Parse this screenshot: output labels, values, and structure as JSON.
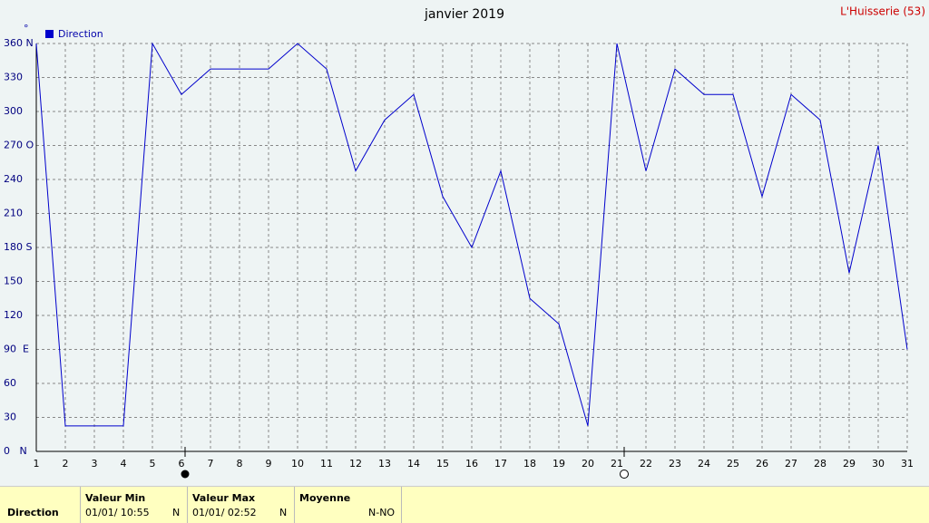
{
  "chart_data": {
    "type": "line",
    "title": "janvier 2019",
    "location": "L'Huisserie (53)",
    "y_unit": "°",
    "x": [
      1,
      2,
      3,
      4,
      5,
      6,
      7,
      8,
      9,
      10,
      11,
      12,
      13,
      14,
      15,
      16,
      17,
      18,
      19,
      20,
      21,
      22,
      23,
      24,
      25,
      26,
      27,
      28,
      29,
      30,
      31
    ],
    "xlim": [
      1,
      31
    ],
    "xticks": [
      1,
      2,
      3,
      4,
      5,
      6,
      7,
      8,
      9,
      10,
      11,
      12,
      13,
      14,
      15,
      16,
      17,
      18,
      19,
      20,
      21,
      22,
      23,
      24,
      25,
      26,
      27,
      28,
      29,
      30,
      31
    ],
    "ylim": [
      0,
      360
    ],
    "yticks": [
      {
        "value": 0,
        "label": "0   N"
      },
      30,
      60,
      {
        "value": 90,
        "label": "90  E"
      },
      120,
      150,
      {
        "value": 180,
        "label": "180 S"
      },
      210,
      240,
      {
        "value": 270,
        "label": "270 O"
      },
      300,
      330,
      {
        "value": 360,
        "label": "360 N"
      }
    ],
    "grid": true,
    "legend": "top-left",
    "series": [
      {
        "name": "Direction",
        "color": "#0000cc",
        "values": [
          360,
          22.5,
          22.5,
          22.5,
          360,
          315,
          337.5,
          337.5,
          337.5,
          360,
          337.5,
          247.5,
          292.5,
          315,
          225,
          180,
          247.5,
          135,
          112.5,
          22.5,
          360,
          247.5,
          337.5,
          315,
          315,
          225,
          315,
          292.5,
          157.5,
          270,
          90
        ]
      }
    ]
  },
  "table": {
    "row_label": "Direction",
    "columns": [
      {
        "header": "Valeur Min",
        "value": "01/01/  10:55",
        "dir": "N"
      },
      {
        "header": "Valeur Max",
        "value": "01/01/  02:52",
        "dir": "N"
      },
      {
        "header": "Moyenne",
        "value": "",
        "dir": "N-NO"
      }
    ]
  }
}
